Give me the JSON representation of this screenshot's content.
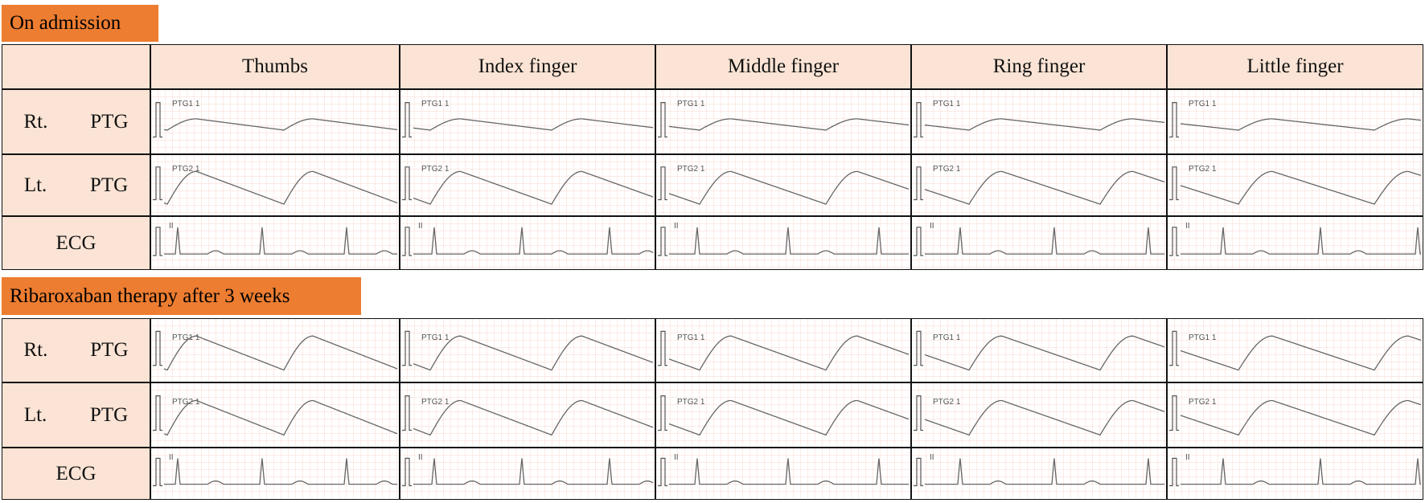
{
  "sections": [
    {
      "title": "On admission",
      "columns": [
        "Thumbs",
        "Index finger",
        "Middle finger",
        "Ring finger",
        "Little finger"
      ],
      "rows": [
        {
          "side": "Rt.",
          "signal": "PTG",
          "trace_label": "PTG1 1"
        },
        {
          "side": "Lt.",
          "signal": "PTG",
          "trace_label": "PTG2 1"
        },
        {
          "signal": "ECG",
          "trace_label": "II"
        }
      ]
    },
    {
      "title": "Ribaroxaban therapy after 3 weeks",
      "rows": [
        {
          "side": "Rt.",
          "signal": "PTG",
          "trace_label": "PTG1 1"
        },
        {
          "side": "Lt.",
          "signal": "PTG",
          "trace_label": "PTG2 1"
        },
        {
          "signal": "ECG",
          "trace_label": "II"
        }
      ]
    }
  ]
}
